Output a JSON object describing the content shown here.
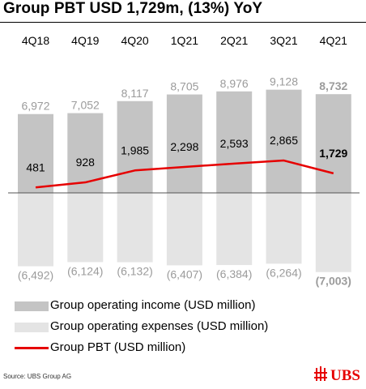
{
  "title": "Group PBT USD 1,729m, (13%) YoY",
  "colors": {
    "income": "#c4c4c4",
    "expenses": "#e4e4e4",
    "pbt_line": "#e60000",
    "value_label": "#9b9b9b",
    "axis": "#555555"
  },
  "chart_data": {
    "type": "bar",
    "categories": [
      "4Q18",
      "4Q19",
      "4Q20",
      "1Q21",
      "2Q21",
      "3Q21",
      "4Q21"
    ],
    "series": [
      {
        "name": "Group operating income (USD million)",
        "values": [
          6972,
          7052,
          8117,
          8705,
          8976,
          9128,
          8732
        ],
        "labels": [
          "6,972",
          "7,052",
          "8,117",
          "8,705",
          "8,976",
          "9,128",
          "8,732"
        ]
      },
      {
        "name": "Group operating expenses (USD million)",
        "values": [
          -6492,
          -6124,
          -6132,
          -6407,
          -6384,
          -6264,
          -7003
        ],
        "labels": [
          "(6,492)",
          "(6,124)",
          "(6,132)",
          "(6,407)",
          "(6,384)",
          "(6,264)",
          "(7,003)"
        ]
      },
      {
        "name": "Group PBT (USD million)",
        "type": "line",
        "values": [
          481,
          928,
          1985,
          2298,
          2593,
          2865,
          1729
        ],
        "labels": [
          "481",
          "928",
          "1,985",
          "2,298",
          "2,593",
          "2,865",
          "1,729"
        ]
      }
    ],
    "highlight_index": 6
  },
  "legend": [
    {
      "label": "Group operating income (USD million)"
    },
    {
      "label": "Group operating expenses (USD million)"
    },
    {
      "label": "Group PBT (USD million)"
    }
  ],
  "source": "Source: UBS Group AG",
  "logo": {
    "text": "UBS",
    "icon": "ubs-keys-icon"
  }
}
